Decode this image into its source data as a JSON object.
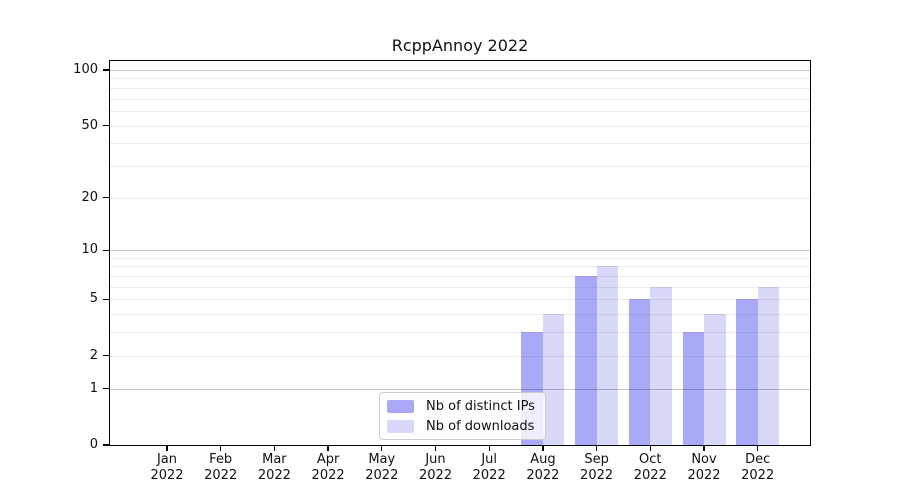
{
  "chart_data": {
    "type": "bar",
    "title": "RcppAnnoy 2022",
    "categories": [
      "Jan",
      "Feb",
      "Mar",
      "Apr",
      "May",
      "Jun",
      "Jul",
      "Aug",
      "Sep",
      "Oct",
      "Nov",
      "Dec"
    ],
    "category_sublabel": "2022",
    "series": [
      {
        "name": "Nb of distinct IPs",
        "color": "#a9a9f8",
        "values": [
          0,
          0,
          0,
          0,
          0,
          0,
          0,
          3,
          7,
          5,
          3,
          5
        ]
      },
      {
        "name": "Nb of downloads",
        "color": "#d8d8f8",
        "values": [
          0,
          0,
          0,
          0,
          0,
          0,
          0,
          4,
          8,
          6,
          4,
          6
        ]
      }
    ],
    "yscale": "log1p",
    "ylim": [
      0,
      112
    ],
    "y_tick_values": [
      0,
      1,
      2,
      5,
      10,
      20,
      50,
      100
    ],
    "y_gridlines_major": [
      1,
      10,
      100
    ],
    "y_gridlines_minor": [
      2,
      3,
      4,
      5,
      6,
      7,
      8,
      9,
      20,
      30,
      40,
      50,
      60,
      70,
      80,
      90
    ],
    "grid": "horizontal",
    "xlabel": "",
    "ylabel": "",
    "legend_position": "lower center inside",
    "background_color": "#ffffff",
    "spine_color": "#000000"
  }
}
